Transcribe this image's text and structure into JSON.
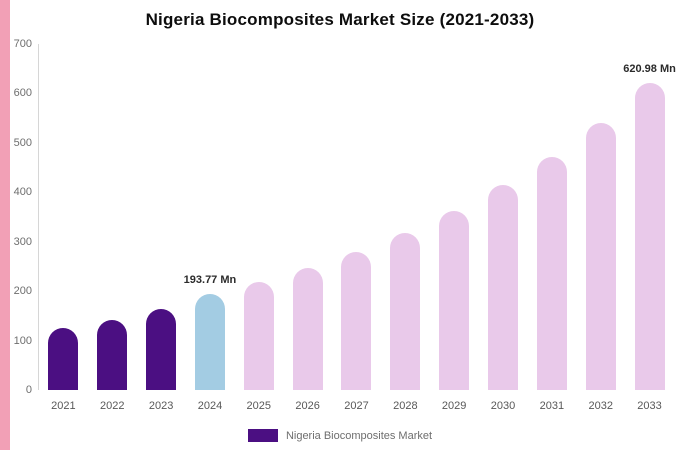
{
  "title": "Nigeria Biocomposites Market Size (2021-2033)",
  "legend": {
    "label": "Nigeria Biocomposites Market",
    "swatch_color": "#4b0f82"
  },
  "colors": {
    "historical_bar": "#4b0f82",
    "base_year_bar": "#a3cce3",
    "forecast_bar": "#e9c9ea",
    "left_strip": "#f2a0b6",
    "axis_line": "#d6d6d6",
    "tick_text": "#6e6e6e",
    "label_text": "#2b2b2b"
  },
  "chart_data": {
    "type": "bar",
    "title": "Nigeria Biocomposites Market Size (2021-2033)",
    "categories": [
      "2021",
      "2022",
      "2023",
      "2024",
      "2025",
      "2026",
      "2027",
      "2028",
      "2029",
      "2030",
      "2031",
      "2032",
      "2033"
    ],
    "values": [
      126,
      142,
      164,
      193.77,
      218,
      246,
      280,
      318,
      362,
      414,
      472,
      540,
      620.98
    ],
    "bar_colors": [
      "#4b0f82",
      "#4b0f82",
      "#4b0f82",
      "#a3cce3",
      "#e9c9ea",
      "#e9c9ea",
      "#e9c9ea",
      "#e9c9ea",
      "#e9c9ea",
      "#e9c9ea",
      "#e9c9ea",
      "#e9c9ea",
      "#e9c9ea"
    ],
    "annotations": [
      {
        "index": 3,
        "text": "193.77 Mn"
      },
      {
        "index": 12,
        "text": "620.98 Mn"
      }
    ],
    "xlabel": "",
    "ylabel": "",
    "ylim": [
      0,
      700
    ],
    "yticks": [
      0,
      100,
      200,
      300,
      400,
      500,
      600,
      700
    ],
    "grid": false,
    "legend_position": "bottom",
    "legend_entries": [
      "Nigeria Biocomposites Market"
    ],
    "units": "Mn"
  }
}
